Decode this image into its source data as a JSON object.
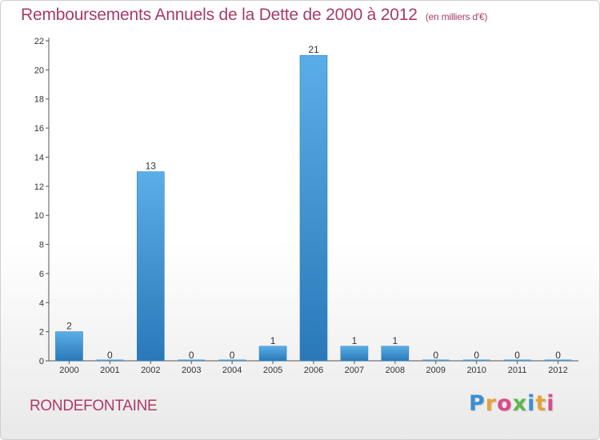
{
  "header": {
    "title": "Remboursements Annuels de la Dette de 2000 à 2012",
    "unit": "(en milliers d'€)"
  },
  "footer": {
    "place": "RONDEFONTAINE",
    "logo": "Proxiti"
  },
  "colors": {
    "title": "#a63b6a",
    "bar_top": "#5aaee8",
    "bar_bottom": "#2a78b8"
  },
  "chart_data": {
    "type": "bar",
    "title": "Remboursements Annuels de la Dette de 2000 à 2012",
    "subtitle": "(en milliers d'€)",
    "categories": [
      "2000",
      "2001",
      "2002",
      "2003",
      "2004",
      "2005",
      "2006",
      "2007",
      "2008",
      "2009",
      "2010",
      "2011",
      "2012"
    ],
    "values": [
      2,
      0,
      13,
      0,
      0,
      1,
      21,
      1,
      1,
      0,
      0,
      0,
      0
    ],
    "data_labels": [
      "2",
      "0",
      "13",
      "0",
      "0",
      "1",
      "21",
      "1",
      "1",
      "0",
      "0",
      "0",
      "0"
    ],
    "yticks": [
      0,
      2,
      4,
      6,
      8,
      10,
      12,
      14,
      16,
      18,
      20,
      22
    ],
    "ylim": [
      0,
      22
    ],
    "grid": false,
    "legend": "none"
  }
}
